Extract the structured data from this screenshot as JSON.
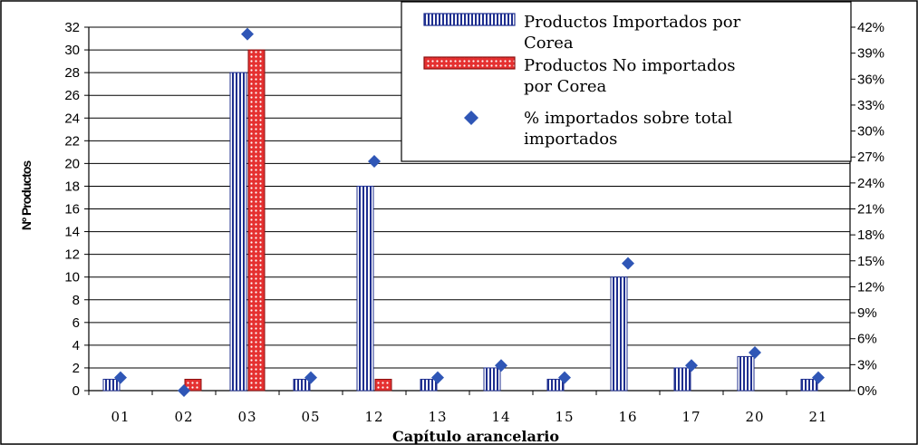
{
  "chart_data": {
    "type": "bar",
    "categories": [
      "01",
      "02",
      "03",
      "05",
      "12",
      "13",
      "14",
      "15",
      "16",
      "17",
      "20",
      "21"
    ],
    "series": [
      {
        "name": "Productos Importados por Corea",
        "kind": "bar",
        "axis": "left",
        "pattern": "vertical-stripes",
        "values": [
          1,
          0,
          28,
          1,
          18,
          1,
          2,
          1,
          10,
          2,
          3,
          1
        ]
      },
      {
        "name": "Productos No importados por Corea",
        "kind": "bar",
        "axis": "left",
        "pattern": "red-dots",
        "values": [
          0,
          1,
          30,
          0,
          1,
          0,
          0,
          0,
          0,
          0,
          0,
          0
        ]
      },
      {
        "name": "% importados sobre total importados",
        "kind": "scatter",
        "axis": "right",
        "marker": "diamond",
        "values": [
          1.5,
          0,
          41.2,
          1.5,
          26.5,
          1.5,
          2.9,
          1.5,
          14.7,
          2.9,
          4.4,
          1.5
        ]
      }
    ],
    "xlabel": "Capítulo arancelario",
    "ylabel": "Nº Productos",
    "ylim": [
      0,
      32
    ],
    "yticks": [
      "0",
      "2",
      "4",
      "6",
      "8",
      "10",
      "12",
      "14",
      "16",
      "18",
      "20",
      "22",
      "24",
      "26",
      "28",
      "30",
      "32"
    ],
    "y2lim": [
      0,
      42
    ],
    "y2ticks": [
      "0%",
      "3%",
      "6%",
      "9%",
      "12%",
      "15%",
      "18%",
      "21%",
      "24%",
      "27%",
      "30%",
      "33%",
      "36%",
      "39%",
      "42%"
    ],
    "grid": true,
    "legend_position": "top-right",
    "legend_lines": [
      [
        "Productos Importados por",
        "Corea"
      ],
      [
        "Productos No importados",
        "por Corea"
      ],
      [
        "% importados sobre total",
        "importados"
      ]
    ],
    "colors": {
      "stripe": "#1f2f8f",
      "dots": "#e53030",
      "marker": "#2f56b6",
      "grid": "#000000"
    }
  }
}
